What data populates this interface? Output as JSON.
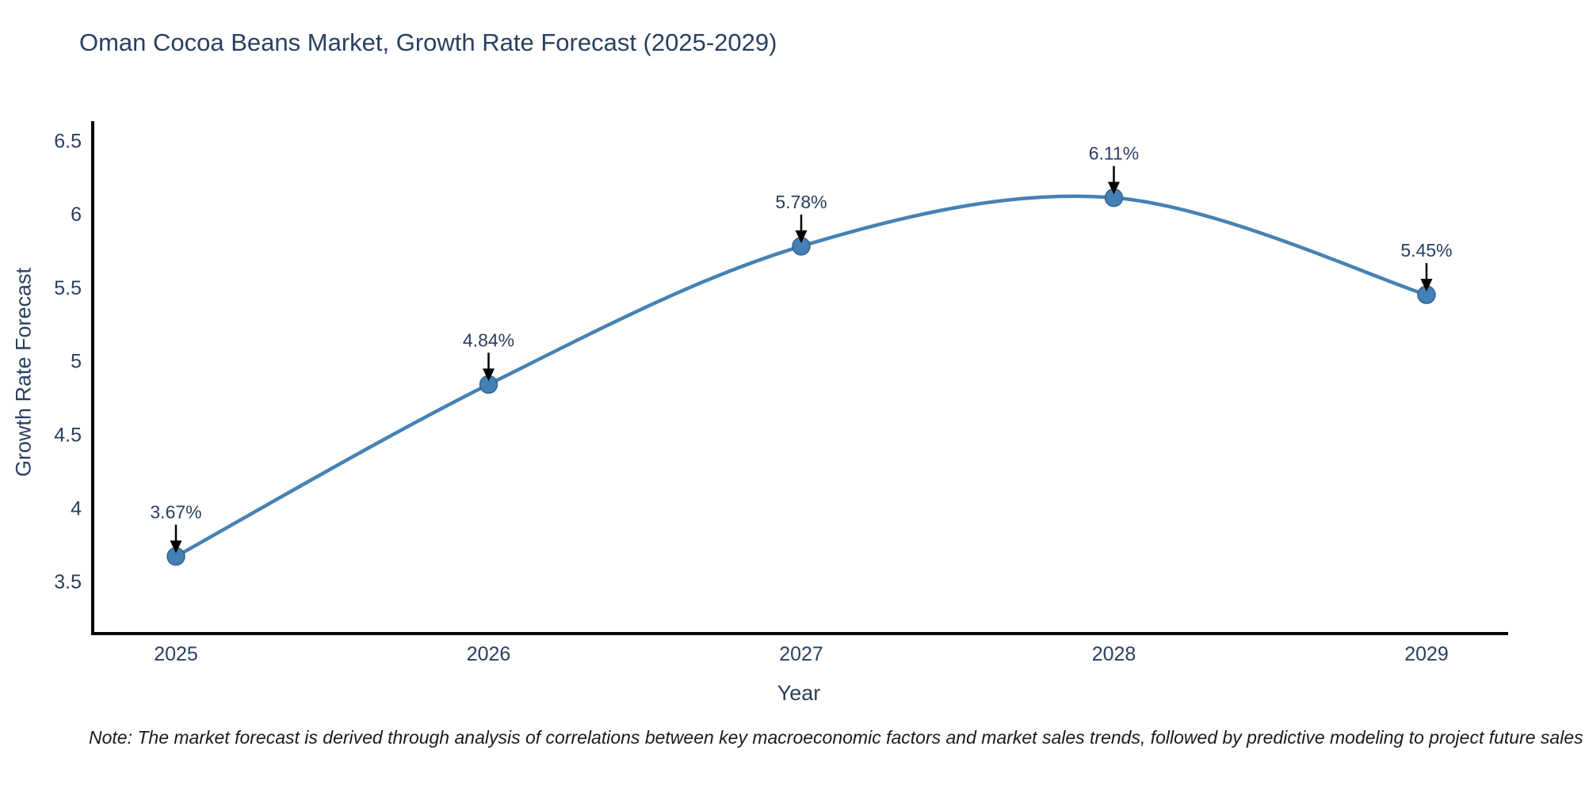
{
  "title": "Oman Cocoa Beans Market, Growth Rate Forecast (2025-2029)",
  "note": "Note: The market forecast is derived through analysis of correlations between key macroeconomic factors and market sales trends, followed by predictive modeling to project future sales",
  "chart_data": {
    "type": "line",
    "title": "Oman Cocoa Beans Market, Growth Rate Forecast (2025-2029)",
    "x": [
      "2025",
      "2026",
      "2027",
      "2028",
      "2029"
    ],
    "series": [
      {
        "name": "Growth Rate Forecast",
        "values": [
          3.67,
          4.84,
          5.78,
          6.11,
          5.45
        ]
      }
    ],
    "point_labels": [
      "3.67%",
      "4.84%",
      "5.78%",
      "6.11%",
      "5.45%"
    ],
    "xlabel": "Year",
    "ylabel": "Growth Rate Forecast",
    "yticks": [
      "3.5",
      "4",
      "4.5",
      "5",
      "5.5",
      "6",
      "6.5"
    ],
    "ytick_values": [
      3.5,
      4,
      4.5,
      5,
      5.5,
      6,
      6.5
    ],
    "ylim": [
      3.145,
      6.62
    ],
    "line_shape": "spline",
    "markers": true,
    "grid": false,
    "legend_position": "none",
    "annotations_arrows": true,
    "colors": {
      "line": "#4682B4",
      "marker": "#4380B6",
      "marker_edge": "#36648B",
      "axis_line": "#000000",
      "text": "#2a3f5f",
      "arrow": "#000000",
      "note_text": "#1a1a1a",
      "background": "#ffffff"
    }
  }
}
